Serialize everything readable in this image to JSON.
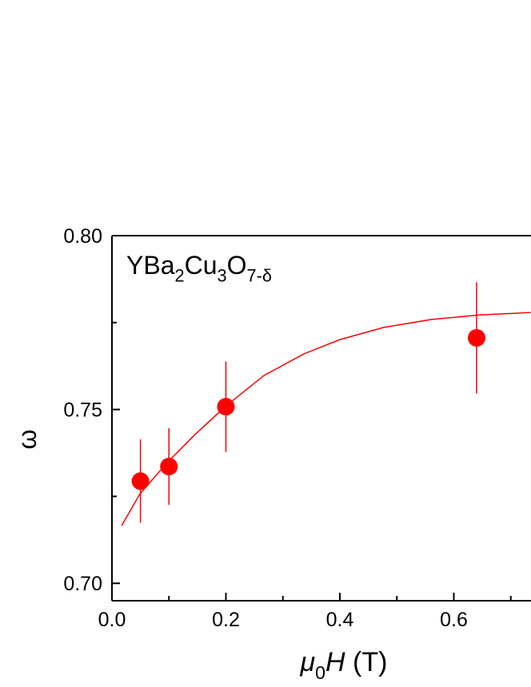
{
  "chart_data": {
    "type": "scatter",
    "annotation": [
      {
        "text": "YBa"
      },
      {
        "sub": "2"
      },
      {
        "text": "Cu"
      },
      {
        "sub": "3"
      },
      {
        "text": "O"
      },
      {
        "sub": "7-δ"
      }
    ],
    "x_label": [
      {
        "text": "μ",
        "italic": true
      },
      {
        "sub": "0"
      },
      {
        "text": "H",
        "italic": true
      },
      {
        "text": " (T)"
      }
    ],
    "y_label": "ω",
    "xlim": [
      0,
      0.735
    ],
    "ylim": [
      0.695,
      0.8
    ],
    "xticks": [
      {
        "value": 0,
        "label": "0.0"
      },
      0.2,
      0.4,
      0.6
    ],
    "yticks": [
      {
        "value": 0.7,
        "label": "0.70"
      },
      0.75,
      {
        "value": 0.8,
        "label": "0.80"
      }
    ],
    "xminorticks": [
      0.1,
      0.3,
      0.5,
      0.7
    ],
    "yminorticks": [
      0.725,
      0.775
    ],
    "series": [
      {
        "color": "#ff0000",
        "x": [
          0.05,
          0.1,
          0.2,
          0.64
        ],
        "values": [
          0.7294,
          0.7336,
          0.7508,
          0.7706
        ],
        "errors": [
          0.012,
          0.011,
          0.013,
          0.016
        ]
      },
      {
        "type": "line",
        "color": "#ff0000",
        "x": [
          0.017,
          0.049,
          0.098,
          0.147,
          0.2,
          0.267,
          0.337,
          0.4,
          0.477,
          0.561,
          0.646,
          0.735
        ],
        "values": [
          0.7166,
          0.7257,
          0.7349,
          0.743,
          0.751,
          0.7598,
          0.766,
          0.7701,
          0.7736,
          0.7759,
          0.7772,
          0.7779
        ]
      }
    ]
  }
}
